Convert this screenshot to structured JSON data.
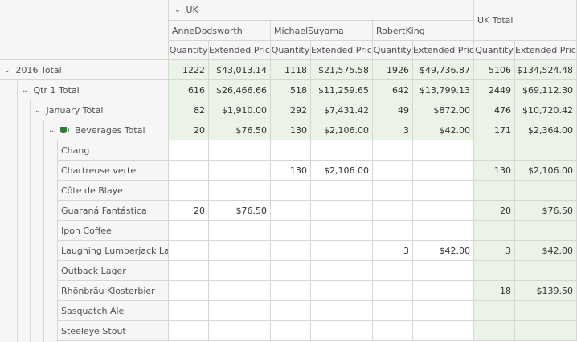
{
  "columns": {
    "country": "UK",
    "country_total": "UK Total",
    "employees": [
      "AnneDodsworth",
      "MichaelSuyama",
      "RobertKing"
    ],
    "measures": [
      "Quantity",
      "Extended Price"
    ]
  },
  "rows": [
    {
      "label": "2016 Total",
      "values": [
        "1222",
        "$43,013.14",
        "1118",
        "$21,575.58",
        "1926",
        "$49,736.87",
        "5106",
        "$134,524.48"
      ]
    },
    {
      "label": "Qtr 1 Total",
      "values": [
        "616",
        "$26,466.66",
        "518",
        "$11,259.65",
        "642",
        "$13,799.13",
        "2449",
        "$69,112.30"
      ]
    },
    {
      "label": "January Total",
      "values": [
        "82",
        "$1,910.00",
        "292",
        "$7,431.42",
        "49",
        "$872.00",
        "476",
        "$10,720.42"
      ]
    },
    {
      "label": "Beverages Total",
      "values": [
        "20",
        "$76.50",
        "130",
        "$2,106.00",
        "3",
        "$42.00",
        "171",
        "$2,364.00"
      ]
    },
    {
      "label": "Chang",
      "values": [
        "",
        "",
        "",
        "",
        "",
        "",
        "",
        ""
      ]
    },
    {
      "label": "Chartreuse verte",
      "values": [
        "",
        "",
        "130",
        "$2,106.00",
        "",
        "",
        "130",
        "$2,106.00"
      ]
    },
    {
      "label": "Côte de Blaye",
      "values": [
        "",
        "",
        "",
        "",
        "",
        "",
        "",
        ""
      ]
    },
    {
      "label": "Guaraná Fantástica",
      "values": [
        "20",
        "$76.50",
        "",
        "",
        "",
        "",
        "20",
        "$76.50"
      ]
    },
    {
      "label": "Ipoh Coffee",
      "values": [
        "",
        "",
        "",
        "",
        "",
        "",
        "",
        ""
      ]
    },
    {
      "label": "Laughing Lumberjack Lager",
      "values": [
        "",
        "",
        "",
        "",
        "3",
        "$42.00",
        "3",
        "$42.00"
      ]
    },
    {
      "label": "Outback Lager",
      "values": [
        "",
        "",
        "",
        "",
        "",
        "",
        "",
        ""
      ]
    },
    {
      "label": "Rhönbräu Klosterbier",
      "values": [
        "",
        "",
        "",
        "",
        "",
        "",
        "18",
        "$139.50"
      ]
    },
    {
      "label": "Sasquatch Ale",
      "values": [
        "",
        "",
        "",
        "",
        "",
        "",
        "",
        ""
      ]
    },
    {
      "label": "Steeleye Stout",
      "values": [
        "",
        "",
        "",
        "",
        "",
        "",
        "",
        ""
      ]
    }
  ],
  "icons": {
    "expander": "chevron-down-icon",
    "category": "coffee-cup-icon"
  },
  "colors": {
    "total_cell_bg": "#eaf3e6",
    "header_bg": "#f6f6f6",
    "category_icon": "#2e7d32"
  }
}
